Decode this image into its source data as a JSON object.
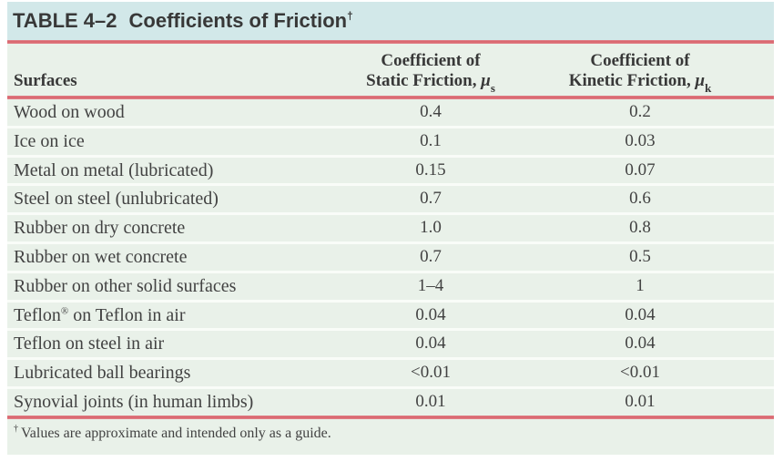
{
  "title": {
    "label": "TABLE 4–2",
    "text": "Coefficients of Friction",
    "dagger": "†"
  },
  "header": {
    "surfaces": "Surfaces",
    "static": {
      "line1": "Coefficient of",
      "line2": "Static Friction, ",
      "mu": "μ",
      "sub": "s"
    },
    "kinetic": {
      "line1": "Coefficient of",
      "line2": "Kinetic Friction, ",
      "mu": "μ",
      "sub": "k"
    }
  },
  "rows": [
    {
      "surface": "Wood on wood",
      "static": "0.4",
      "kinetic": "0.2"
    },
    {
      "surface": "Ice on ice",
      "static": "0.1",
      "kinetic": "0.03"
    },
    {
      "surface": "Metal on metal (lubricated)",
      "static": "0.15",
      "kinetic": "0.07"
    },
    {
      "surface": "Steel on steel (unlubricated)",
      "static": "0.7",
      "kinetic": "0.6"
    },
    {
      "surface": "Rubber on dry concrete",
      "static": "1.0",
      "kinetic": "0.8"
    },
    {
      "surface": "Rubber on wet concrete",
      "static": "0.7",
      "kinetic": "0.5"
    },
    {
      "surface": "Rubber on other solid surfaces",
      "static": "1–4",
      "kinetic": "1"
    },
    {
      "surface_prefix": "Teflon",
      "surface_sup": "®",
      "surface_rest": " on Teflon in air",
      "static": "0.04",
      "kinetic": "0.04"
    },
    {
      "surface": "Teflon on steel in air",
      "static": "0.04",
      "kinetic": "0.04"
    },
    {
      "surface": "Lubricated ball bearings",
      "static": "<0.01",
      "kinetic": "<0.01"
    },
    {
      "surface": "Synovial joints (in human limbs)",
      "static": "0.01",
      "kinetic": "0.01"
    }
  ],
  "footnote": {
    "dagger": "†",
    "text": "Values are approximate and intended only as a guide."
  },
  "colors": {
    "title_bar_bg": "#d2e8e9",
    "body_bg": "#e9f1e9",
    "rule_red": "#d8626a",
    "separator": "#f9fcf8",
    "text_dark": "#383838",
    "text_body": "#424242"
  }
}
